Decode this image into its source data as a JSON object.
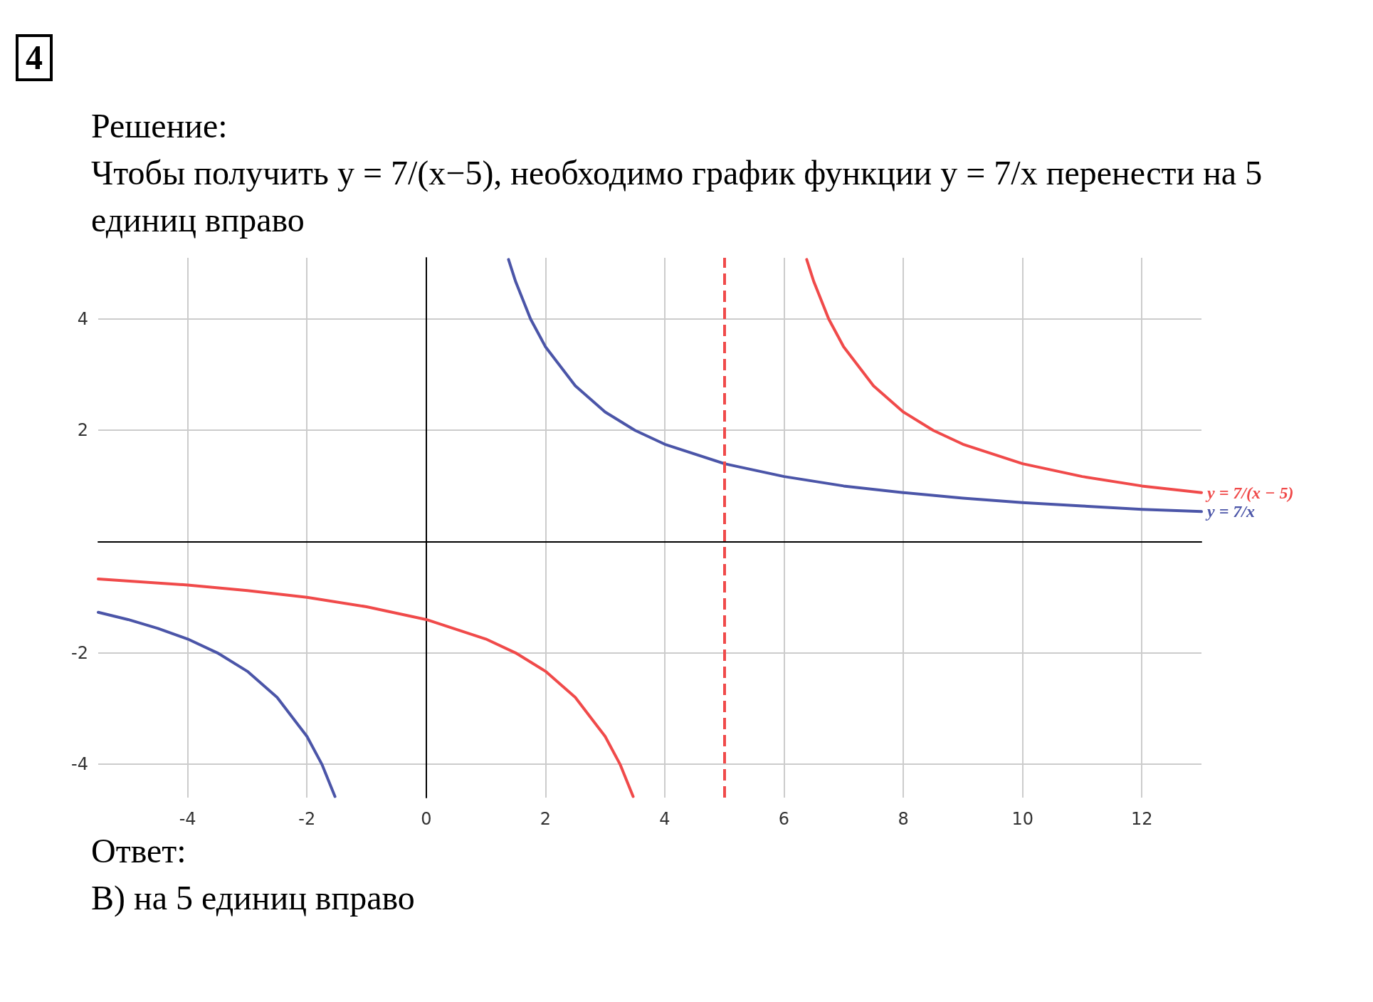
{
  "chart_data": {
    "type": "line",
    "title": "4",
    "subtitle": "Решение:",
    "annotations": [
      "Чтобы получить y = 7/(x−5), необходимо график функции y = 7/x перенести на 5 единиц вправо",
      "Ответ:",
      "В) на 5 единиц вправо"
    ],
    "series": [
      {
        "name": "y = 7/x",
        "color": "#4b55a8",
        "x": [
          -5.5,
          -5,
          -4.5,
          -4,
          -3.5,
          -3,
          -2.5,
          -2,
          -1.75,
          -1.53,
          0,
          1.38,
          1.5,
          1.75,
          2,
          2.5,
          3,
          3.5,
          4,
          5,
          6,
          7,
          8,
          9,
          10,
          11,
          12,
          13
        ],
        "values": [
          -1.27,
          -1.4,
          -1.56,
          -1.75,
          -2,
          -2.33,
          -2.8,
          -3.5,
          -4,
          -4.58,
          null,
          5.07,
          4.67,
          4,
          3.5,
          2.8,
          2.33,
          2,
          1.75,
          1.4,
          1.17,
          1,
          0.88,
          0.78,
          0.7,
          0.64,
          0.58,
          0.54
        ]
      },
      {
        "name": "y = 7/(x − 5)",
        "color": "#f04a4a",
        "x": [
          -5.5,
          -4,
          -3,
          -2,
          -1,
          0,
          1,
          1.5,
          2,
          2.5,
          3,
          3.25,
          3.47,
          5,
          6.38,
          6.5,
          6.75,
          7,
          7.5,
          8,
          8.5,
          9,
          10,
          11,
          12,
          13
        ],
        "values": [
          -0.67,
          -0.78,
          -0.88,
          -1,
          -1.17,
          -1.4,
          -1.75,
          -2,
          -2.33,
          -2.8,
          -3.5,
          -4,
          -4.58,
          null,
          5.07,
          4.67,
          4,
          3.5,
          2.8,
          2.33,
          2,
          1.75,
          1.4,
          1.17,
          1,
          0.88
        ]
      }
    ],
    "xlim": [
      -5.5,
      13
    ],
    "xticks": [
      -4,
      -2,
      0,
      2,
      4,
      6,
      8,
      10,
      12
    ],
    "ylim": [
      -4.6,
      5.1
    ],
    "yticks": [
      -4,
      -2,
      2,
      4
    ],
    "ref_lines": [
      {
        "axis": "x",
        "value": 5,
        "color": "#f04a4a",
        "line_style": "dashed"
      }
    ],
    "grid": true,
    "legend": false,
    "marker": "none",
    "line_style": "solid"
  }
}
